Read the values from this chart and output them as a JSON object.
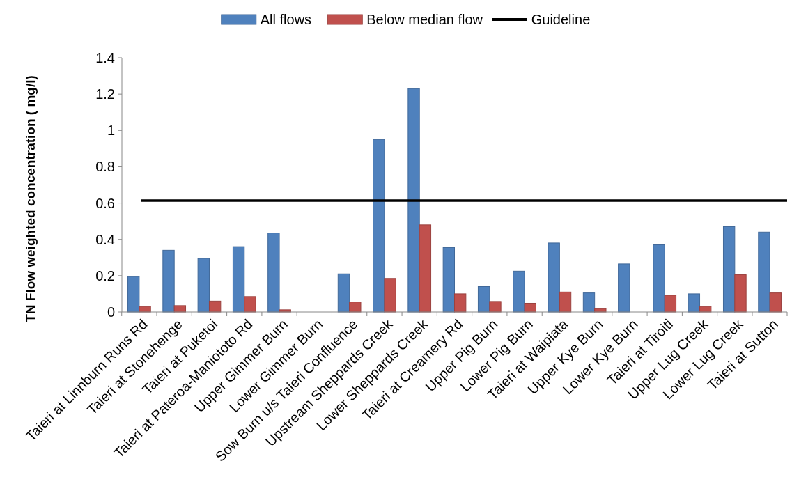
{
  "chart_data": {
    "type": "bar",
    "ylabel": "TN Flow weighted concentration ( mg/l)",
    "categories": [
      "Taieri at Linnburn Runs Rd",
      "Taieri at Stonehenge",
      "Taieri at Puketoi",
      "Taieri at Pateroa-Maniototo Rd",
      "Upper Gimmer Burn",
      "Lower Gimmer Burn",
      "Sow Burn u/s Taieri Confluence",
      "Upstream Sheppards Creek",
      "Lower Sheppards Creek",
      "Taieri at Creamery Rd",
      "Upper Pig Burn",
      "Lower Pig Burn",
      "Taieri at Waipiata",
      "Upper Kye Burn",
      "Lower Kye Burn",
      "Taieri at Tiroiti",
      "Upper Lug Creek",
      "Lower Lug Creek",
      "Taieri at Sutton"
    ],
    "series": [
      {
        "name": "All flows",
        "color": "#4f81bd",
        "values": [
          0.195,
          0.34,
          0.295,
          0.36,
          0.435,
          null,
          0.21,
          0.95,
          1.23,
          0.355,
          0.14,
          0.225,
          0.38,
          0.105,
          0.265,
          0.37,
          0.1,
          0.47,
          0.44
        ]
      },
      {
        "name": "Below median flow",
        "color": "#c0504d",
        "values": [
          0.03,
          0.035,
          0.06,
          0.085,
          0.012,
          null,
          0.055,
          0.185,
          0.48,
          0.1,
          0.058,
          0.048,
          0.11,
          0.018,
          null,
          0.092,
          0.03,
          0.205,
          0.105
        ]
      }
    ],
    "ref_lines": [
      {
        "axis": "y",
        "value": 0.614,
        "label": "Guideline",
        "color": "#000000"
      }
    ],
    "ylim": [
      0,
      1.4
    ],
    "yticks": [
      0,
      0.2,
      0.4,
      0.6,
      0.8,
      1,
      1.2,
      1.4
    ],
    "grid": false,
    "legend": "top"
  }
}
